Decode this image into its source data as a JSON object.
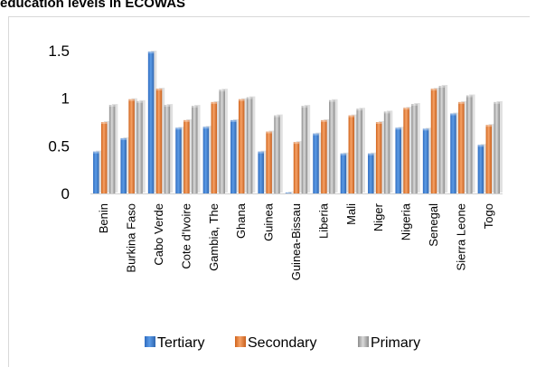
{
  "chart_data": {
    "type": "bar",
    "title": "education levels in ECOWAS",
    "xlabel": "",
    "ylabel": "",
    "ylim": [
      0,
      1.5
    ],
    "yticks": [
      "0",
      "0.5",
      "1",
      "1.5"
    ],
    "grid": false,
    "legend_position": "bottom",
    "categories": [
      "Benin",
      "Burkina Faso",
      "Cabo Verde",
      "Cote d'Ivoire",
      "Gambia, The",
      "Ghana",
      "Guinea",
      "Guinea-Bissau",
      "Liberia",
      "Mali",
      "Niger",
      "Nigeria",
      "Senegal",
      "Sierra Leone",
      "Togo"
    ],
    "series": [
      {
        "name": "Tertiary",
        "color": "#4a86d4",
        "values": [
          0.44,
          0.58,
          1.49,
          0.69,
          0.7,
          0.77,
          0.44,
          0.01,
          0.63,
          0.42,
          0.42,
          0.69,
          0.68,
          0.84,
          0.51
        ]
      },
      {
        "name": "Secondary",
        "color": "#ed7d31",
        "values": [
          0.75,
          0.99,
          1.1,
          0.77,
          0.96,
          0.99,
          0.65,
          0.54,
          0.77,
          0.82,
          0.75,
          0.9,
          1.1,
          0.96,
          0.72
        ]
      },
      {
        "name": "Primary",
        "color": "#a5a5a5",
        "values": [
          0.93,
          0.97,
          0.93,
          0.92,
          1.09,
          1.01,
          0.82,
          0.92,
          0.98,
          0.89,
          0.86,
          0.94,
          1.13,
          1.03,
          0.96
        ]
      }
    ]
  }
}
